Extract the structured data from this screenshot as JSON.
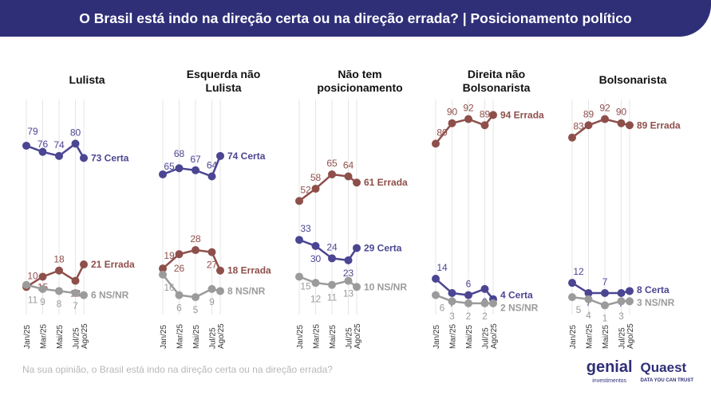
{
  "header": {
    "title": "O Brasil está indo na direção certa ou na direção errada? | Posicionamento político"
  },
  "footer": {
    "question": "Na sua opinião, o Brasil está indo na direção certa ou na direção errada?",
    "logo_genial": "genial",
    "logo_genial_sub": "investimentos",
    "logo_quaest": "Quaest",
    "logo_quaest_sub": "DATA YOU CAN TRUST"
  },
  "colors": {
    "certa": "#4b4592",
    "errada": "#8e4f4b",
    "nsnr": "#9b9b9b",
    "header": "#2f2f78"
  },
  "chart_data": {
    "type": "line",
    "x": [
      "Jan/25",
      "Mar/25",
      "Mai/25",
      "Jul/25",
      "Ago/25"
    ],
    "ylim": [
      0,
      100
    ],
    "panels": [
      {
        "title": "Lulista",
        "series": [
          {
            "name": "Certa",
            "values": [
              79,
              76,
              74,
              80,
              73
            ]
          },
          {
            "name": "Errada",
            "values": [
              10,
              15,
              18,
              13,
              21
            ]
          },
          {
            "name": "NS/NR",
            "values": [
              11,
              9,
              8,
              7,
              6
            ]
          }
        ]
      },
      {
        "title": "Esquerda não Lulista",
        "series": [
          {
            "name": "Certa",
            "values": [
              65,
              68,
              67,
              64,
              74
            ]
          },
          {
            "name": "Errada",
            "values": [
              19,
              26,
              28,
              27,
              18
            ]
          },
          {
            "name": "NS/NR",
            "values": [
              16,
              6,
              5,
              9,
              8
            ]
          }
        ]
      },
      {
        "title": "Não tem posicionamento",
        "series": [
          {
            "name": "Certa",
            "values": [
              33,
              30,
              24,
              23,
              29
            ]
          },
          {
            "name": "Errada",
            "values": [
              52,
              58,
              65,
              64,
              61
            ]
          },
          {
            "name": "NS/NR",
            "values": [
              15,
              12,
              11,
              13,
              10
            ]
          }
        ]
      },
      {
        "title": "Direita não Bolsonarista",
        "series": [
          {
            "name": "Certa",
            "values": [
              14,
              7,
              6,
              9,
              4
            ]
          },
          {
            "name": "Errada",
            "values": [
              80,
              90,
              92,
              89,
              94
            ]
          },
          {
            "name": "NS/NR",
            "values": [
              6,
              3,
              2,
              2,
              2
            ]
          }
        ]
      },
      {
        "title": "Bolsonarista",
        "series": [
          {
            "name": "Certa",
            "values": [
              12,
              7,
              7,
              7,
              8
            ]
          },
          {
            "name": "Errada",
            "values": [
              83,
              89,
              92,
              90,
              89
            ]
          },
          {
            "name": "NS/NR",
            "values": [
              5,
              4,
              1,
              3,
              3
            ]
          }
        ]
      }
    ]
  }
}
